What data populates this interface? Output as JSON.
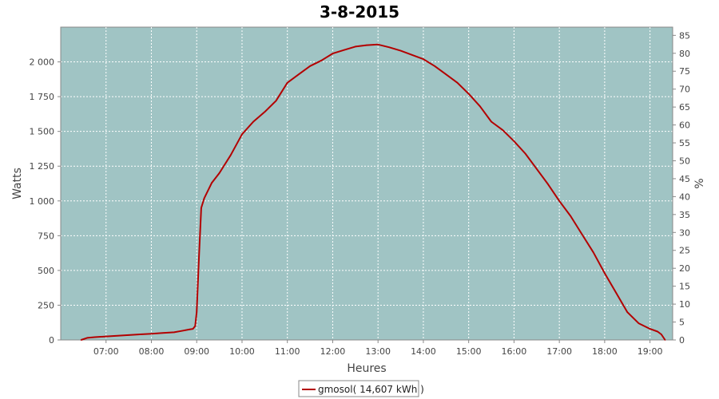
{
  "chart_data": {
    "type": "line",
    "title": "3-8-2015",
    "xlabel": "Heures",
    "ylabel": "Watts",
    "y2label": "%",
    "colors": {
      "series": "#b30000",
      "plot_background": "#a0c4c4",
      "grid": "#ffffff"
    },
    "x_ticks": [
      "07:00",
      "08:00",
      "09:00",
      "10:00",
      "11:00",
      "12:00",
      "13:00",
      "14:00",
      "15:00",
      "16:00",
      "17:00",
      "18:00",
      "19:00"
    ],
    "y_ticks": [
      "0",
      "250",
      "500",
      "750",
      "1 000",
      "1 250",
      "1 500",
      "1 750",
      "2 000"
    ],
    "y2_ticks": [
      "0",
      "5",
      "10",
      "15",
      "20",
      "25",
      "30",
      "35",
      "40",
      "45",
      "50",
      "55",
      "60",
      "65",
      "70",
      "75",
      "80",
      "85"
    ],
    "xlim": [
      "06:00",
      "19:30"
    ],
    "ylim": [
      0,
      2250
    ],
    "y2lim": [
      0,
      87.3
    ],
    "grid": true,
    "legend_position": "bottom-center",
    "series": [
      {
        "name": "gmosol( 14,607 kWh )",
        "x": [
          "06:27",
          "06:35",
          "06:45",
          "07:00",
          "07:15",
          "07:30",
          "07:45",
          "08:00",
          "08:15",
          "08:30",
          "08:40",
          "08:50",
          "08:55",
          "08:58",
          "09:00",
          "09:03",
          "09:06",
          "09:10",
          "09:20",
          "09:30",
          "09:45",
          "10:00",
          "10:15",
          "10:30",
          "10:45",
          "11:00",
          "11:15",
          "11:30",
          "11:45",
          "12:00",
          "12:15",
          "12:30",
          "12:45",
          "13:00",
          "13:15",
          "13:30",
          "13:45",
          "14:00",
          "14:15",
          "14:30",
          "14:45",
          "15:00",
          "15:15",
          "15:30",
          "15:45",
          "16:00",
          "16:15",
          "16:30",
          "16:45",
          "17:00",
          "17:15",
          "17:30",
          "17:45",
          "18:00",
          "18:15",
          "18:30",
          "18:45",
          "19:00",
          "19:10",
          "19:15",
          "19:20"
        ],
        "values": [
          0,
          15,
          20,
          25,
          30,
          35,
          40,
          45,
          50,
          55,
          65,
          75,
          80,
          100,
          200,
          600,
          950,
          1020,
          1130,
          1200,
          1330,
          1480,
          1570,
          1640,
          1720,
          1850,
          1910,
          1970,
          2010,
          2060,
          2085,
          2110,
          2120,
          2125,
          2105,
          2080,
          2050,
          2020,
          1970,
          1910,
          1850,
          1770,
          1680,
          1570,
          1510,
          1430,
          1340,
          1230,
          1120,
          1000,
          890,
          760,
          630,
          480,
          340,
          200,
          120,
          80,
          60,
          40,
          0
        ]
      }
    ]
  }
}
